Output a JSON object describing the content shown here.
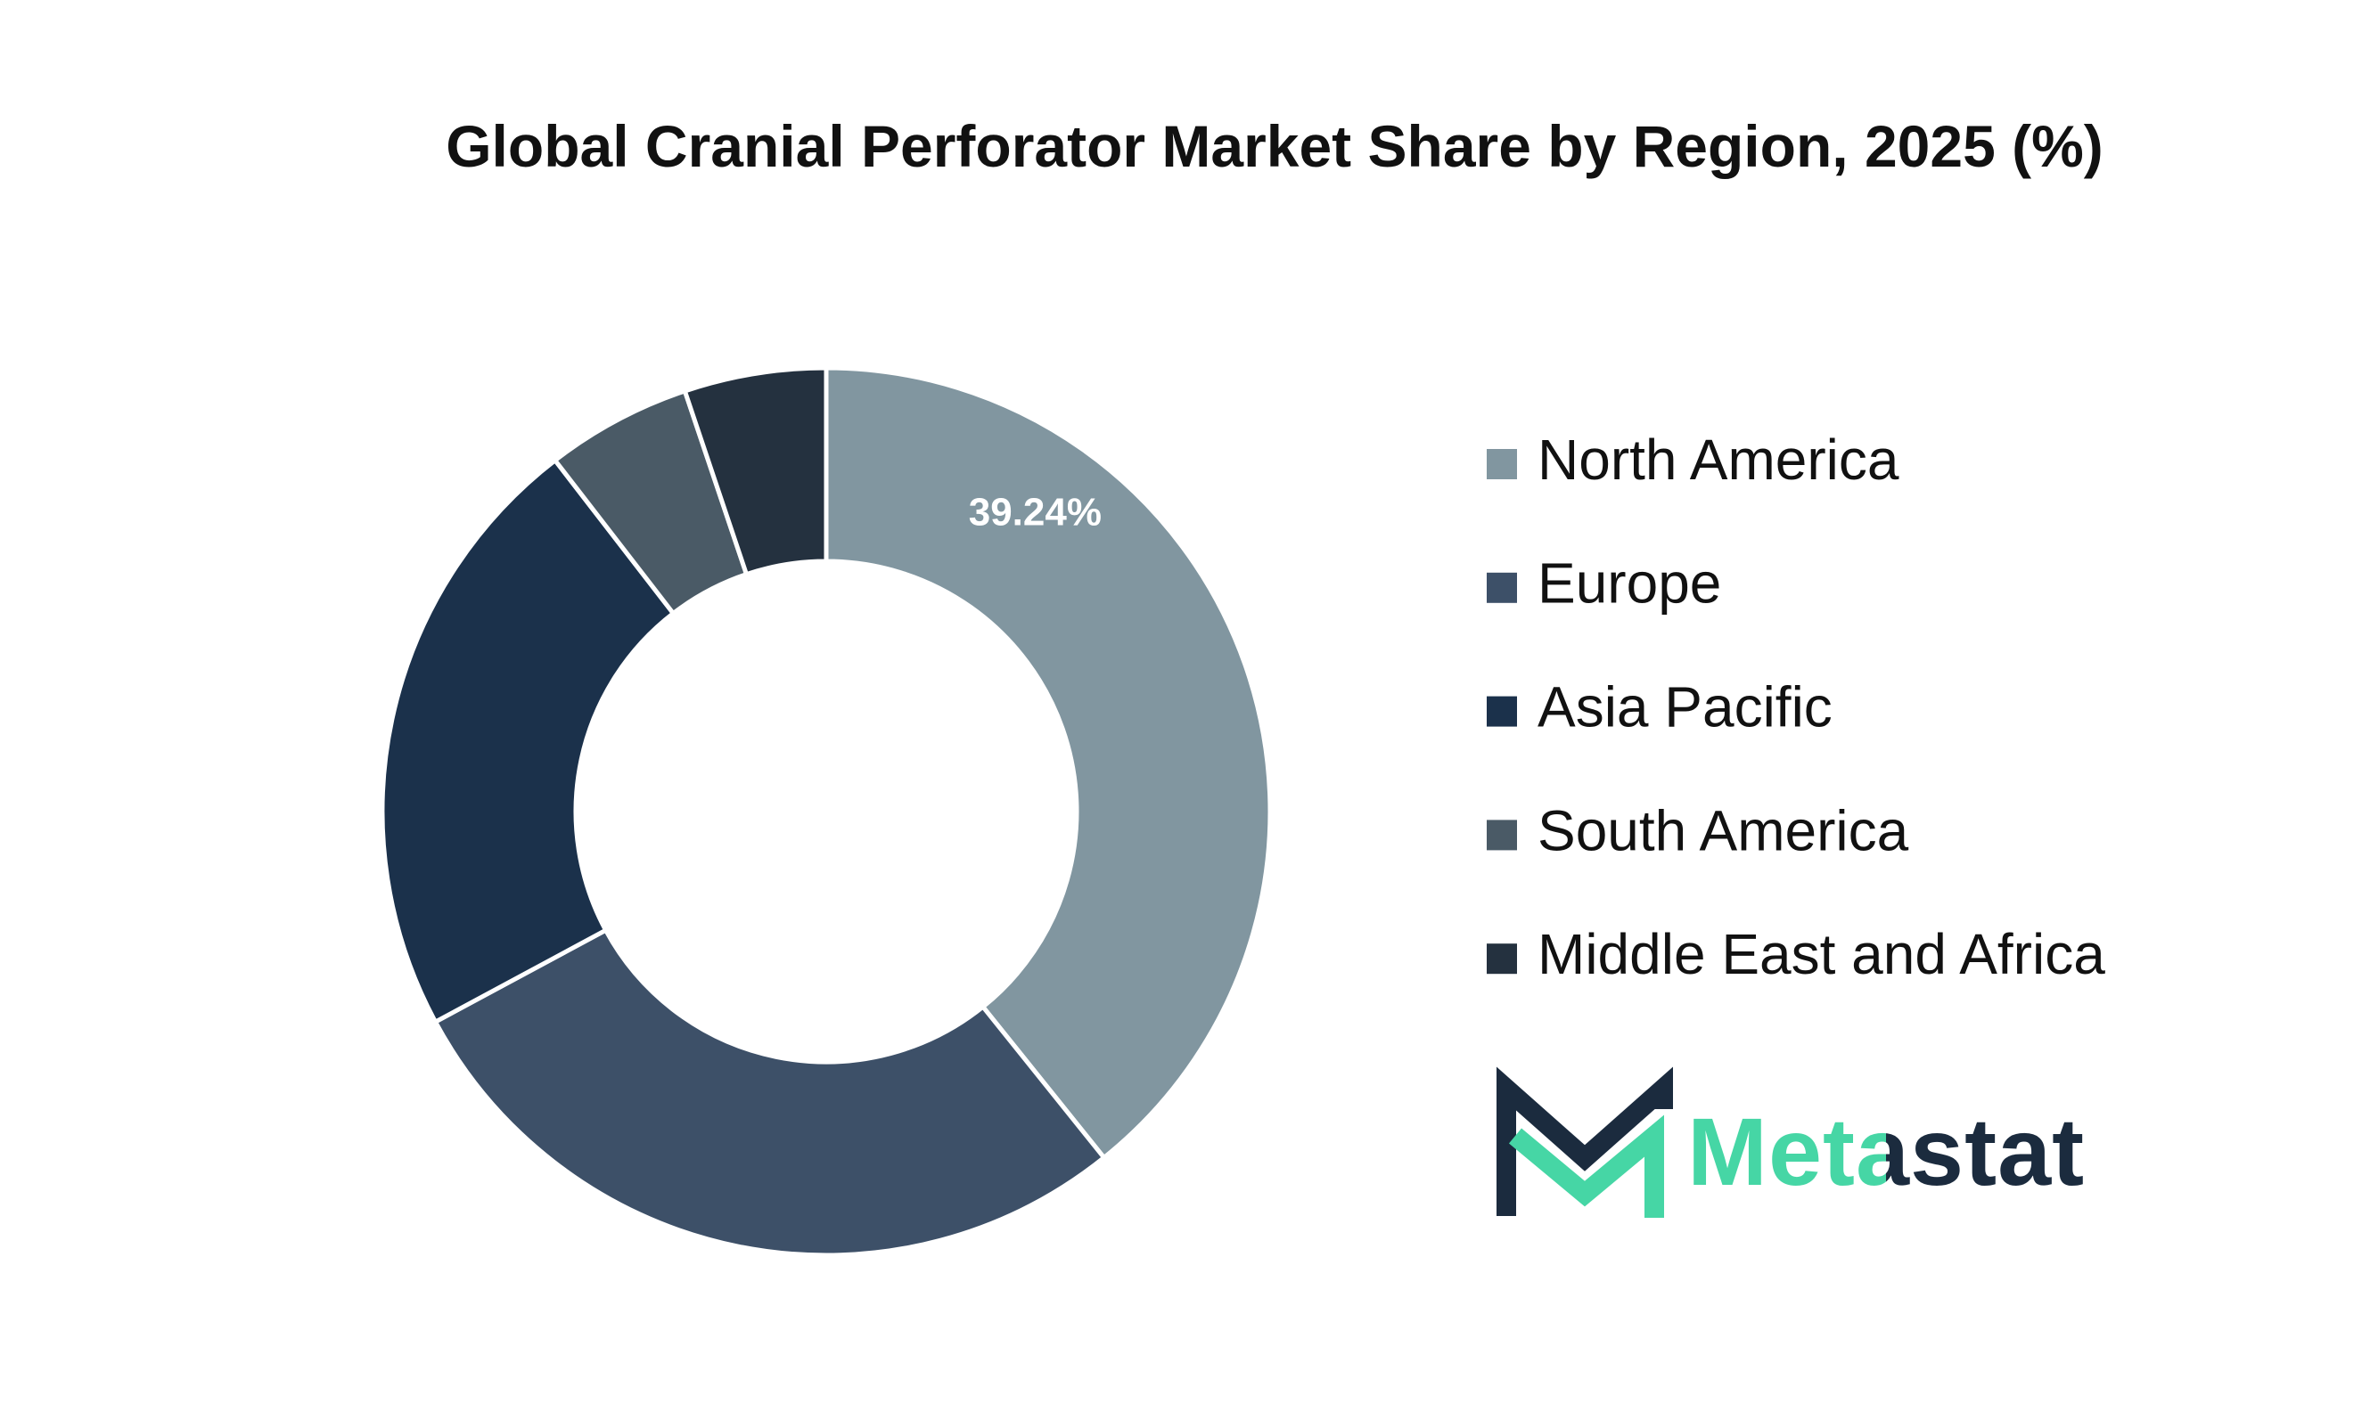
{
  "chart_data": {
    "type": "donut",
    "title": "Global Cranial Perforator Market Share by Region, 2025 (%)",
    "categories": [
      "North America",
      "Europe",
      "Asia Pacific",
      "South America",
      "Middle East and Africa"
    ],
    "values": [
      39.24,
      27.9,
      22.4,
      5.3,
      5.16
    ],
    "value_labels": [
      "39.24%",
      null,
      null,
      null,
      null
    ],
    "colors": [
      "#8196a0",
      "#3d5068",
      "#1b314b",
      "#4a5a66",
      "#24313f"
    ],
    "legend": "right"
  },
  "brand": "Metastat"
}
